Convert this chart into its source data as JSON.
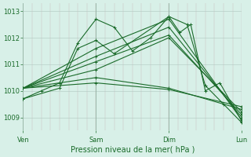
{
  "bg_color": "#d8f0e8",
  "grid_color": "#b0d8c8",
  "line_color": "#1a6b2a",
  "marker_color": "#1a6b2a",
  "title": "",
  "xlabel": "Pression niveau de la mer( hPa )",
  "ylabel": "",
  "ylim": [
    1008.5,
    1013.3
  ],
  "yticks": [
    1009,
    1010,
    1011,
    1012,
    1013
  ],
  "xlim": [
    0,
    3.0
  ],
  "xtick_positions": [
    0.0,
    1.0,
    2.0,
    3.0
  ],
  "xtick_labels": [
    "Ven",
    "Sam",
    "Dim",
    "Lun"
  ],
  "figsize": [
    3.2,
    2.0
  ],
  "dpi": 100,
  "lines": [
    {
      "x": [
        0.0,
        0.25,
        0.5,
        0.75,
        1.0,
        1.25,
        1.5,
        1.75,
        2.0,
        2.25,
        2.5,
        2.75,
        3.0
      ],
      "y": [
        1009.7,
        1010.0,
        1010.3,
        1011.8,
        1012.7,
        1012.4,
        1011.5,
        1012.0,
        1012.8,
        1012.5,
        1010.2,
        1009.5,
        1008.8
      ]
    },
    {
      "x": [
        0.0,
        1.0,
        2.0,
        3.0
      ],
      "y": [
        1010.1,
        1011.6,
        1012.7,
        1008.9
      ]
    },
    {
      "x": [
        0.0,
        1.0,
        2.0,
        3.0
      ],
      "y": [
        1010.1,
        1011.3,
        1012.4,
        1009.0
      ]
    },
    {
      "x": [
        0.0,
        1.0,
        2.0,
        3.0
      ],
      "y": [
        1010.1,
        1011.1,
        1012.1,
        1009.1
      ]
    },
    {
      "x": [
        0.0,
        1.0,
        2.0,
        3.0
      ],
      "y": [
        1010.1,
        1010.8,
        1012.0,
        1009.2
      ]
    },
    {
      "x": [
        0.0,
        1.0,
        2.0,
        3.0
      ],
      "y": [
        1010.1,
        1010.5,
        1010.1,
        1009.3
      ]
    },
    {
      "x": [
        0.0,
        1.0,
        2.0,
        3.0
      ],
      "y": [
        1010.1,
        1010.3,
        1010.05,
        1009.4
      ]
    },
    {
      "x": [
        0.0,
        0.5,
        0.75,
        1.0,
        1.25,
        2.0,
        2.15,
        2.3,
        2.5,
        2.7,
        3.0
      ],
      "y": [
        1009.7,
        1010.1,
        1011.6,
        1011.9,
        1011.4,
        1012.8,
        1012.2,
        1012.5,
        1010.0,
        1010.3,
        1008.85
      ]
    }
  ],
  "vlines": [
    0.0,
    1.0,
    2.0,
    3.0
  ],
  "minor_vlines_count": 24,
  "marker": "+"
}
